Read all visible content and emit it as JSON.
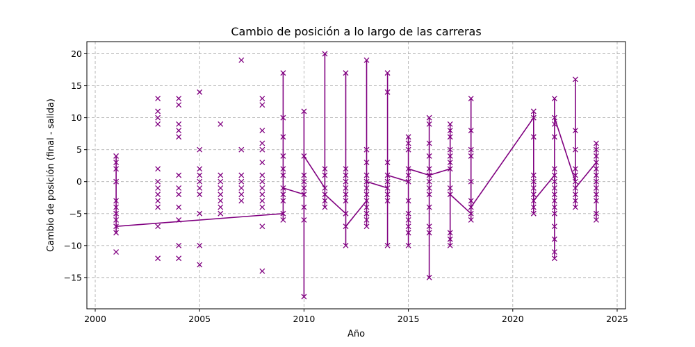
{
  "chart_data": {
    "type": "line",
    "title": "Cambio de posición a lo largo de las carreras",
    "xlabel": "Año",
    "ylabel": "Cambio de posición (final - salida)",
    "xlim": [
      1999.6,
      2025.4
    ],
    "ylim": [
      -19.9,
      21.9
    ],
    "xticks": [
      2000,
      2005,
      2010,
      2015,
      2020,
      2025
    ],
    "yticks": [
      -15,
      -10,
      -5,
      0,
      5,
      10,
      15,
      20
    ],
    "grid": true,
    "color": "#800080",
    "marker": "x",
    "series": [
      {
        "points": [
          [
            2001,
            4
          ],
          [
            2001,
            3
          ],
          [
            2001,
            2
          ],
          [
            2001,
            0
          ],
          [
            2001,
            -3
          ],
          [
            2001,
            -4
          ],
          [
            2001,
            -5
          ],
          [
            2001,
            -6
          ],
          [
            2001,
            -7
          ],
          [
            2001,
            -8
          ],
          [
            2001,
            -11
          ],
          [
            2003,
            13
          ],
          [
            2003,
            11
          ],
          [
            2003,
            10
          ],
          [
            2003,
            9
          ],
          [
            2003,
            2
          ],
          [
            2003,
            0
          ],
          [
            2003,
            -1
          ],
          [
            2003,
            -2
          ],
          [
            2003,
            -3
          ],
          [
            2003,
            -4
          ],
          [
            2003,
            -7
          ],
          [
            2003,
            -12
          ],
          [
            2004,
            13
          ],
          [
            2004,
            12
          ],
          [
            2004,
            9
          ],
          [
            2004,
            8
          ],
          [
            2004,
            7
          ],
          [
            2004,
            1
          ],
          [
            2004,
            -1
          ],
          [
            2004,
            -2
          ],
          [
            2004,
            -4
          ],
          [
            2004,
            -6
          ],
          [
            2004,
            -10
          ],
          [
            2004,
            -12
          ],
          [
            2005,
            14
          ],
          [
            2005,
            5
          ],
          [
            2005,
            2
          ],
          [
            2005,
            1
          ],
          [
            2005,
            0
          ],
          [
            2005,
            -1
          ],
          [
            2005,
            -2
          ],
          [
            2005,
            -5
          ],
          [
            2005,
            -10
          ],
          [
            2005,
            -13
          ],
          [
            2006,
            9
          ],
          [
            2006,
            1
          ],
          [
            2006,
            0
          ],
          [
            2006,
            -1
          ],
          [
            2006,
            -2
          ],
          [
            2006,
            -3
          ],
          [
            2006,
            -4
          ],
          [
            2006,
            -5
          ],
          [
            2007,
            19
          ],
          [
            2007,
            5
          ],
          [
            2007,
            1
          ],
          [
            2007,
            0
          ],
          [
            2007,
            -1
          ],
          [
            2007,
            -2
          ],
          [
            2007,
            -3
          ],
          [
            2008,
            13
          ],
          [
            2008,
            12
          ],
          [
            2008,
            8
          ],
          [
            2008,
            6
          ],
          [
            2008,
            5
          ],
          [
            2008,
            3
          ],
          [
            2008,
            1
          ],
          [
            2008,
            0
          ],
          [
            2008,
            -1
          ],
          [
            2008,
            -2
          ],
          [
            2008,
            -3
          ],
          [
            2008,
            -4
          ],
          [
            2008,
            -7
          ],
          [
            2008,
            -14
          ],
          [
            2009,
            17
          ],
          [
            2009,
            10
          ],
          [
            2009,
            7
          ],
          [
            2009,
            4
          ],
          [
            2009,
            2
          ],
          [
            2009,
            1
          ],
          [
            2009,
            -1
          ],
          [
            2009,
            -2
          ],
          [
            2009,
            -3
          ],
          [
            2009,
            -5
          ],
          [
            2009,
            -6
          ],
          [
            2010,
            11
          ],
          [
            2010,
            4
          ],
          [
            2010,
            1
          ],
          [
            2010,
            0
          ],
          [
            2010,
            -1
          ],
          [
            2010,
            -2
          ],
          [
            2010,
            -4
          ],
          [
            2010,
            -6
          ],
          [
            2010,
            -18
          ],
          [
            2011,
            20
          ],
          [
            2011,
            2
          ],
          [
            2011,
            1
          ],
          [
            2011,
            -1
          ],
          [
            2011,
            -2
          ],
          [
            2011,
            -3
          ],
          [
            2011,
            -4
          ],
          [
            2012,
            17
          ],
          [
            2012,
            2
          ],
          [
            2012,
            1
          ],
          [
            2012,
            0
          ],
          [
            2012,
            -1
          ],
          [
            2012,
            -2
          ],
          [
            2012,
            -3
          ],
          [
            2012,
            -5
          ],
          [
            2012,
            -7
          ],
          [
            2012,
            -10
          ],
          [
            2013,
            19
          ],
          [
            2013,
            5
          ],
          [
            2013,
            3
          ],
          [
            2013,
            1
          ],
          [
            2013,
            0
          ],
          [
            2013,
            -1
          ],
          [
            2013,
            -2
          ],
          [
            2013,
            -3
          ],
          [
            2013,
            -4
          ],
          [
            2013,
            -5
          ],
          [
            2013,
            -6
          ],
          [
            2013,
            -7
          ],
          [
            2014,
            17
          ],
          [
            2014,
            14
          ],
          [
            2014,
            3
          ],
          [
            2014,
            1
          ],
          [
            2014,
            0
          ],
          [
            2014,
            -1
          ],
          [
            2014,
            -2
          ],
          [
            2014,
            -3
          ],
          [
            2014,
            -10
          ],
          [
            2015,
            7
          ],
          [
            2015,
            6
          ],
          [
            2015,
            5
          ],
          [
            2015,
            2
          ],
          [
            2015,
            1
          ],
          [
            2015,
            0
          ],
          [
            2015,
            -3
          ],
          [
            2015,
            -5
          ],
          [
            2015,
            -6
          ],
          [
            2015,
            -7
          ],
          [
            2015,
            -8
          ],
          [
            2015,
            -10
          ],
          [
            2016,
            10
          ],
          [
            2016,
            9
          ],
          [
            2016,
            6
          ],
          [
            2016,
            4
          ],
          [
            2016,
            2
          ],
          [
            2016,
            1
          ],
          [
            2016,
            0
          ],
          [
            2016,
            -1
          ],
          [
            2016,
            -2
          ],
          [
            2016,
            -4
          ],
          [
            2016,
            -7
          ],
          [
            2016,
            -8
          ],
          [
            2016,
            -15
          ],
          [
            2017,
            9
          ],
          [
            2017,
            8
          ],
          [
            2017,
            7
          ],
          [
            2017,
            5
          ],
          [
            2017,
            4
          ],
          [
            2017,
            3
          ],
          [
            2017,
            2
          ],
          [
            2017,
            -1
          ],
          [
            2017,
            -2
          ],
          [
            2017,
            -8
          ],
          [
            2017,
            -9
          ],
          [
            2017,
            -10
          ],
          [
            2018,
            13
          ],
          [
            2018,
            8
          ],
          [
            2018,
            5
          ],
          [
            2018,
            4
          ],
          [
            2018,
            0
          ],
          [
            2018,
            -3
          ],
          [
            2018,
            -4
          ],
          [
            2018,
            -5
          ],
          [
            2018,
            -6
          ],
          [
            2021,
            11
          ],
          [
            2021,
            10
          ],
          [
            2021,
            7
          ],
          [
            2021,
            1
          ],
          [
            2021,
            0
          ],
          [
            2021,
            -1
          ],
          [
            2021,
            -2
          ],
          [
            2021,
            -3
          ],
          [
            2021,
            -4
          ],
          [
            2021,
            -5
          ],
          [
            2022,
            13
          ],
          [
            2022,
            10
          ],
          [
            2022,
            9
          ],
          [
            2022,
            7
          ],
          [
            2022,
            2
          ],
          [
            2022,
            1
          ],
          [
            2022,
            0
          ],
          [
            2022,
            -1
          ],
          [
            2022,
            -2
          ],
          [
            2022,
            -3
          ],
          [
            2022,
            -4
          ],
          [
            2022,
            -5
          ],
          [
            2022,
            -7
          ],
          [
            2022,
            -9
          ],
          [
            2022,
            -11
          ],
          [
            2022,
            -12
          ],
          [
            2023,
            16
          ],
          [
            2023,
            8
          ],
          [
            2023,
            5
          ],
          [
            2023,
            2
          ],
          [
            2023,
            1
          ],
          [
            2023,
            0
          ],
          [
            2023,
            -1
          ],
          [
            2023,
            -2
          ],
          [
            2023,
            -3
          ],
          [
            2023,
            -4
          ],
          [
            2024,
            6
          ],
          [
            2024,
            5
          ],
          [
            2024,
            4
          ],
          [
            2024,
            3
          ],
          [
            2024,
            2
          ],
          [
            2024,
            1
          ],
          [
            2024,
            0
          ],
          [
            2024,
            -1
          ],
          [
            2024,
            -2
          ],
          [
            2024,
            -3
          ],
          [
            2024,
            -5
          ],
          [
            2024,
            -6
          ]
        ],
        "line": [
          [
            2001,
            4
          ],
          [
            2001,
            -8
          ],
          [
            2001,
            -7
          ],
          [
            2009,
            -5
          ],
          [
            2009,
            17
          ],
          [
            2009,
            -6
          ],
          [
            2009,
            -1
          ],
          [
            2010,
            -2
          ],
          [
            2010,
            11
          ],
          [
            2010,
            -18
          ],
          [
            2010,
            4
          ],
          [
            2011,
            -1
          ],
          [
            2011,
            20
          ],
          [
            2011,
            -4
          ],
          [
            2011,
            -2
          ],
          [
            2012,
            -5
          ],
          [
            2012,
            17
          ],
          [
            2012,
            -10
          ],
          [
            2012,
            -7
          ],
          [
            2013,
            -3
          ],
          [
            2013,
            19
          ],
          [
            2013,
            -7
          ],
          [
            2013,
            0
          ],
          [
            2014,
            -1
          ],
          [
            2014,
            17
          ],
          [
            2014,
            -10
          ],
          [
            2014,
            1
          ],
          [
            2015,
            0
          ],
          [
            2015,
            7
          ],
          [
            2015,
            -10
          ],
          [
            2015,
            2
          ],
          [
            2016,
            1
          ],
          [
            2016,
            10
          ],
          [
            2016,
            -15
          ],
          [
            2016,
            1
          ],
          [
            2017,
            2
          ],
          [
            2017,
            9
          ],
          [
            2017,
            -10
          ],
          [
            2017,
            -2
          ],
          [
            2018,
            -5
          ],
          [
            2018,
            13
          ],
          [
            2018,
            -6
          ],
          [
            2018,
            -4
          ],
          [
            2021,
            10
          ],
          [
            2021,
            11
          ],
          [
            2021,
            -5
          ],
          [
            2021,
            -3
          ],
          [
            2022,
            1
          ],
          [
            2022,
            13
          ],
          [
            2022,
            -12
          ],
          [
            2022,
            10
          ],
          [
            2023,
            0
          ],
          [
            2023,
            16
          ],
          [
            2023,
            -4
          ],
          [
            2023,
            -1
          ],
          [
            2024,
            3
          ],
          [
            2024,
            6
          ],
          [
            2024,
            -6
          ]
        ]
      }
    ]
  }
}
